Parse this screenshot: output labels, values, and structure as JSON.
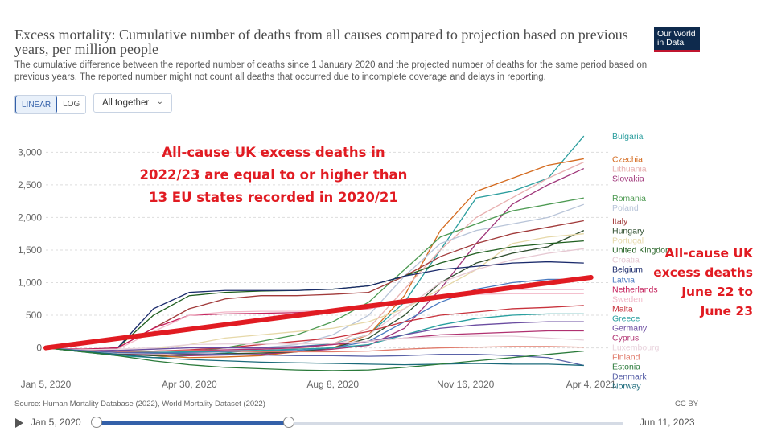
{
  "header": {
    "title": "Excess mortality: Cumulative number of deaths from all causes compared to projection based on previous years, per million people",
    "subtitle": "The cumulative difference between the reported number of deaths since 1 January 2020 and the projected number of deaths for the same period based on previous years. The reported number might not count all deaths that occurred due to incomplete coverage and delays in reporting.",
    "logo": "Our World in Data"
  },
  "controls": {
    "linear": "LINEAR",
    "log": "LOG",
    "dropdown": "All together"
  },
  "annotations": {
    "main": [
      "All-cause UK excess deaths in",
      "2022/23 are equal to or higher than",
      "13 EU states recorded in 2020/21"
    ],
    "side": [
      "All-cause UK",
      "excess deaths",
      "June 22 to",
      "June 23"
    ]
  },
  "footer": {
    "source": "Source: Human Mortality Database (2022), World Mortality Dataset (2022)",
    "license": "CC BY"
  },
  "timeline": {
    "start": "Jan 5, 2020",
    "end": "Jun 11, 2023"
  },
  "chart_data": {
    "type": "line",
    "title": "Excess mortality: Cumulative number of deaths from all causes compared to projection based on previous years, per million people",
    "xlabel": "",
    "ylabel": "",
    "x": [
      0,
      1,
      2,
      3,
      4,
      5,
      6,
      7,
      8,
      9,
      10,
      11,
      12,
      13,
      14,
      15
    ],
    "xlim": [
      0,
      15.7
    ],
    "ylim": [
      -400,
      3300
    ],
    "y_ticks": [
      0,
      500,
      1000,
      1500,
      2000,
      2500,
      3000
    ],
    "y_tick_labels": [
      "0",
      "500",
      "1,000",
      "1,500",
      "2,000",
      "2,500",
      "3,000"
    ],
    "x_ticks": [
      0,
      4,
      8,
      11.7,
      15.2
    ],
    "x_tick_labels": [
      "Jan 5, 2020",
      "Apr 30, 2020",
      "Aug 8, 2020",
      "Nov 16, 2020",
      "Apr 4, 2021"
    ],
    "series": [
      {
        "name": "Bulgaria",
        "color": "#2a9d9d",
        "values": [
          0,
          -60,
          -120,
          -150,
          -120,
          -80,
          -20,
          20,
          60,
          200,
          700,
          1500,
          2300,
          2400,
          2600,
          3250
        ]
      },
      {
        "name": "Czechia",
        "color": "#d46a1e",
        "values": [
          0,
          -40,
          -80,
          -120,
          -150,
          -140,
          -120,
          -60,
          0,
          200,
          800,
          1800,
          2400,
          2600,
          2800,
          2900
        ]
      },
      {
        "name": "Lithuania",
        "color": "#e8b0b0",
        "values": [
          0,
          -50,
          -90,
          -100,
          -80,
          -60,
          -40,
          -20,
          60,
          300,
          900,
          1500,
          2000,
          2300,
          2600,
          2850
        ]
      },
      {
        "name": "Slovakia",
        "color": "#a0367a",
        "values": [
          0,
          -50,
          -90,
          -110,
          -120,
          -110,
          -100,
          -60,
          -20,
          40,
          300,
          900,
          1600,
          2200,
          2500,
          2750
        ]
      },
      {
        "name": "Romania",
        "color": "#4d9a52",
        "values": [
          0,
          -50,
          -80,
          -90,
          -60,
          0,
          100,
          200,
          400,
          700,
          1200,
          1700,
          1900,
          2100,
          2200,
          2300
        ]
      },
      {
        "name": "Poland",
        "color": "#b8c4d8",
        "values": [
          0,
          -50,
          -80,
          -90,
          -60,
          -40,
          0,
          50,
          200,
          500,
          1100,
          1600,
          1800,
          1900,
          2000,
          2200
        ]
      },
      {
        "name": "Italy",
        "color": "#a13a3a",
        "values": [
          0,
          -40,
          0,
          300,
          600,
          750,
          800,
          800,
          820,
          850,
          1100,
          1400,
          1600,
          1750,
          1850,
          1950
        ]
      },
      {
        "name": "Hungary",
        "color": "#2e4d2e",
        "values": [
          0,
          -60,
          -100,
          -120,
          -100,
          -90,
          -80,
          -60,
          0,
          150,
          500,
          1000,
          1300,
          1450,
          1550,
          1800
        ]
      },
      {
        "name": "Portugal",
        "color": "#e6d8a8",
        "values": [
          0,
          -40,
          -60,
          -20,
          50,
          150,
          200,
          250,
          300,
          400,
          600,
          900,
          1200,
          1600,
          1700,
          1750
        ]
      },
      {
        "name": "United Kingdom",
        "color": "#1f5e1f",
        "values": [
          0,
          -30,
          0,
          500,
          800,
          850,
          870,
          880,
          900,
          950,
          1100,
          1300,
          1450,
          1550,
          1600,
          1640
        ]
      },
      {
        "name": "Croatia",
        "color": "#e6c8d2",
        "values": [
          0,
          -40,
          -60,
          -70,
          -60,
          -40,
          -20,
          0,
          50,
          200,
          600,
          1000,
          1200,
          1350,
          1450,
          1520
        ]
      },
      {
        "name": "Belgium",
        "color": "#1a2a6b",
        "values": [
          0,
          -30,
          0,
          600,
          850,
          880,
          880,
          880,
          900,
          950,
          1100,
          1200,
          1250,
          1300,
          1320,
          1300
        ]
      },
      {
        "name": "Latvia",
        "color": "#4a7ac0",
        "values": [
          0,
          -40,
          -70,
          -80,
          -70,
          -60,
          -50,
          -40,
          0,
          100,
          400,
          700,
          900,
          1000,
          1050,
          1050
        ]
      },
      {
        "name": "Netherlands",
        "color": "#c41e5a",
        "values": [
          0,
          -20,
          0,
          300,
          500,
          520,
          530,
          540,
          560,
          600,
          700,
          800,
          850,
          900,
          900,
          900
        ]
      },
      {
        "name": "Sweden",
        "color": "#f2b8c8",
        "values": [
          0,
          -30,
          -20,
          250,
          500,
          550,
          560,
          560,
          570,
          600,
          700,
          780,
          820,
          830,
          830,
          830
        ]
      },
      {
        "name": "Malta",
        "color": "#c8323c",
        "values": [
          0,
          -40,
          -60,
          -50,
          -30,
          0,
          50,
          100,
          150,
          250,
          400,
          500,
          550,
          600,
          620,
          650
        ]
      },
      {
        "name": "Greece",
        "color": "#2aa0a0",
        "values": [
          0,
          -40,
          -60,
          -70,
          -60,
          -50,
          -40,
          -20,
          0,
          50,
          200,
          350,
          450,
          500,
          520,
          520
        ]
      },
      {
        "name": "Germany",
        "color": "#6a4ca0",
        "values": [
          0,
          -30,
          -40,
          -20,
          0,
          0,
          0,
          20,
          50,
          100,
          200,
          300,
          350,
          380,
          400,
          400
        ]
      },
      {
        "name": "Cyprus",
        "color": "#b03070",
        "values": [
          0,
          -40,
          -50,
          -50,
          -40,
          -30,
          -20,
          0,
          50,
          100,
          150,
          200,
          220,
          240,
          260,
          260
        ]
      },
      {
        "name": "Luxembourg",
        "color": "#e8d2dc",
        "values": [
          0,
          -30,
          -20,
          0,
          50,
          60,
          60,
          60,
          70,
          100,
          150,
          170,
          180,
          180,
          150,
          120
        ]
      },
      {
        "name": "Finland",
        "color": "#e07a6a",
        "values": [
          0,
          -40,
          -60,
          -50,
          -40,
          -50,
          -60,
          -60,
          -60,
          -50,
          -20,
          0,
          10,
          20,
          20,
          10
        ]
      },
      {
        "name": "Denmark",
        "color": "#5a62a8",
        "values": [
          0,
          -40,
          -70,
          -80,
          -90,
          -100,
          -110,
          -120,
          -120,
          -130,
          -120,
          -100,
          -100,
          -120,
          -150,
          -270
        ]
      },
      {
        "name": "Norway",
        "color": "#1a6a7a",
        "values": [
          0,
          -50,
          -100,
          -150,
          -180,
          -200,
          -220,
          -230,
          -240,
          -250,
          -260,
          -250,
          -240,
          -250,
          -250,
          -270
        ]
      },
      {
        "name": "Estonia",
        "color": "#2a7a3a",
        "values": [
          0,
          -60,
          -120,
          -200,
          -260,
          -300,
          -320,
          -340,
          -350,
          -340,
          -300,
          -250,
          -200,
          -150,
          -100,
          -50
        ]
      }
    ],
    "overlay_line": {
      "name": "UK excess deaths June 22 to June 23",
      "color": "#e11b22",
      "from": [
        0,
        0
      ],
      "to": [
        15.2,
        1080
      ]
    }
  }
}
